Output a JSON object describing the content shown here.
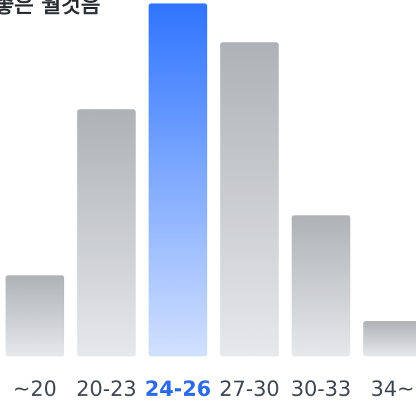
{
  "chart_data": {
    "type": "bar",
    "title": "좋은 월것음",
    "categories": [
      "~20",
      "20-23",
      "24-26",
      "27-30",
      "30-33",
      "34~"
    ],
    "values": [
      23,
      70,
      100,
      89,
      40,
      10
    ],
    "highlight_index": 2,
    "ylim": [
      0,
      100
    ],
    "grid": false,
    "legend": "none"
  },
  "colors": {
    "bar_top": "#aeb2b6",
    "bar_bottom": "#e6e8ea",
    "highlight_top": "#2f74ff",
    "highlight_bottom": "#d1e1ff",
    "label": "#434a55",
    "label_highlight": "#2e6be6",
    "title": "#2b2f36"
  }
}
